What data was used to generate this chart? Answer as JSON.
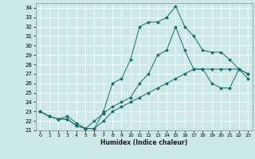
{
  "xlabel": "Humidex (Indice chaleur)",
  "bg_color": "#cce8e8",
  "grid_color": "#ffffff",
  "line_color": "#1a6b6b",
  "xlim": [
    -0.5,
    23.5
  ],
  "ylim": [
    21.0,
    34.5
  ],
  "xticks": [
    0,
    1,
    2,
    3,
    4,
    5,
    6,
    7,
    8,
    9,
    10,
    11,
    12,
    13,
    14,
    15,
    16,
    17,
    18,
    19,
    20,
    21,
    22,
    23
  ],
  "yticks": [
    21,
    22,
    23,
    24,
    25,
    26,
    27,
    28,
    29,
    30,
    31,
    32,
    33,
    34
  ],
  "line1_x": [
    0,
    1,
    2,
    3,
    4,
    5,
    6,
    7,
    8,
    9,
    10,
    11,
    12,
    13,
    14,
    15,
    16,
    17,
    18,
    19,
    20,
    21,
    22,
    23
  ],
  "line1_y": [
    23.0,
    22.5,
    22.2,
    22.2,
    21.5,
    21.2,
    21.2,
    23.0,
    26.0,
    26.5,
    28.5,
    32.0,
    32.5,
    32.5,
    33.0,
    34.2,
    32.0,
    31.0,
    29.5,
    29.3,
    29.3,
    28.5,
    27.5,
    26.5
  ],
  "line2_x": [
    0,
    1,
    2,
    3,
    4,
    5,
    6,
    7,
    8,
    9,
    10,
    11,
    12,
    13,
    14,
    15,
    16,
    17,
    18,
    19,
    20,
    21,
    22,
    23
  ],
  "line2_y": [
    23.0,
    22.5,
    22.2,
    22.5,
    21.8,
    21.2,
    22.0,
    22.8,
    23.5,
    24.0,
    24.5,
    26.0,
    27.0,
    29.0,
    29.5,
    32.0,
    29.5,
    27.5,
    27.5,
    26.0,
    25.5,
    25.5,
    27.5,
    27.0
  ],
  "line3_x": [
    0,
    1,
    2,
    3,
    4,
    5,
    6,
    7,
    8,
    9,
    10,
    11,
    12,
    13,
    14,
    15,
    16,
    17,
    18,
    19,
    20,
    21,
    22,
    23
  ],
  "line3_y": [
    23.0,
    22.5,
    22.2,
    22.2,
    21.5,
    21.2,
    21.2,
    22.0,
    23.0,
    23.5,
    24.0,
    24.5,
    25.0,
    25.5,
    26.0,
    26.5,
    27.0,
    27.5,
    27.5,
    27.5,
    27.5,
    27.5,
    27.5,
    27.0
  ]
}
